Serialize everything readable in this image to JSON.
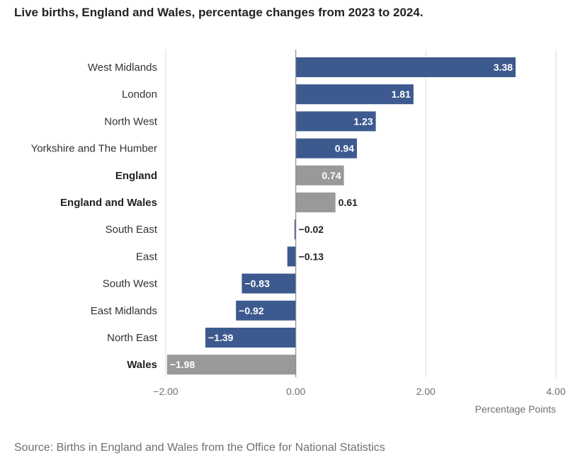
{
  "chart_data": {
    "type": "bar",
    "orientation": "horizontal",
    "title": "Live births, England and Wales, percentage changes from 2023 to 2024.",
    "xlabel": "Percentage Points",
    "ylabel": "",
    "xlim": [
      -2,
      4
    ],
    "xticks": [
      -2,
      0,
      2,
      4
    ],
    "xtick_labels": [
      "−2.00",
      "0.00",
      "2.00",
      "4.00"
    ],
    "grid": true,
    "colors": {
      "region": "#3d5a8f",
      "aggregate": "#999999",
      "grid": "#d9d9d9",
      "zero_line": "#8c8c8c"
    },
    "bars": [
      {
        "category": "West Midlands",
        "value": 3.38,
        "label": "3.38",
        "group": "region",
        "bold": false
      },
      {
        "category": "London",
        "value": 1.81,
        "label": "1.81",
        "group": "region",
        "bold": false
      },
      {
        "category": "North West",
        "value": 1.23,
        "label": "1.23",
        "group": "region",
        "bold": false
      },
      {
        "category": "Yorkshire and The Humber",
        "value": 0.94,
        "label": "0.94",
        "group": "region",
        "bold": false
      },
      {
        "category": "England",
        "value": 0.74,
        "label": "0.74",
        "group": "aggregate",
        "bold": true
      },
      {
        "category": "England and Wales",
        "value": 0.61,
        "label": "0.61",
        "group": "aggregate",
        "bold": true
      },
      {
        "category": "South East",
        "value": -0.02,
        "label": "−0.02",
        "group": "region",
        "bold": false
      },
      {
        "category": "East",
        "value": -0.13,
        "label": "−0.13",
        "group": "region",
        "bold": false
      },
      {
        "category": "South West",
        "value": -0.83,
        "label": "−0.83",
        "group": "region",
        "bold": false
      },
      {
        "category": "East Midlands",
        "value": -0.92,
        "label": "−0.92",
        "group": "region",
        "bold": false
      },
      {
        "category": "North East",
        "value": -1.39,
        "label": "−1.39",
        "group": "region",
        "bold": false
      },
      {
        "category": "Wales",
        "value": -1.98,
        "label": "−1.98",
        "group": "aggregate",
        "bold": true
      }
    ]
  },
  "source": "Source: Births in England and Wales from the Office for National Statistics"
}
